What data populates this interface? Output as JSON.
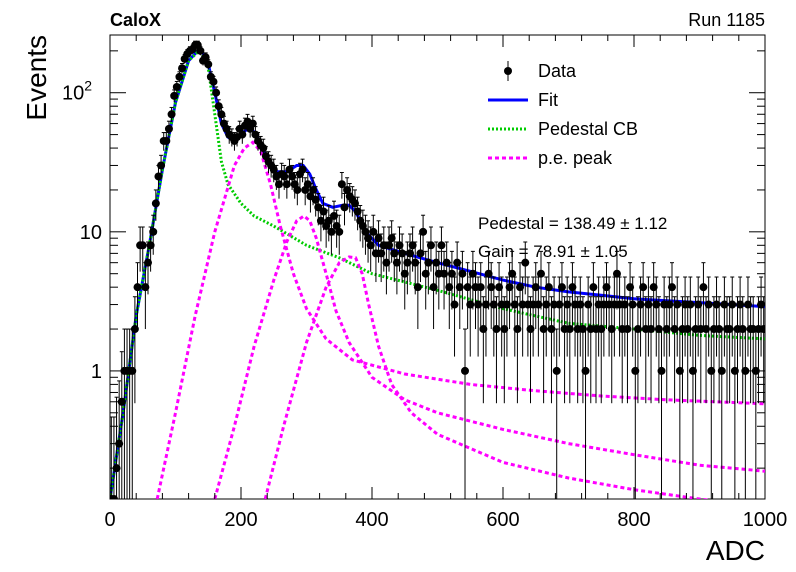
{
  "header": {
    "left_label": "CaloX",
    "right_label": "Run 1185"
  },
  "fit_results": {
    "pedestal_text": "Pedestal = 138.49 ± 1.12",
    "gain_text": "Gain = 78.91 ± 1.05"
  },
  "legend": [
    {
      "label": "Data",
      "marker": "point-with-errorbar",
      "color": "#000000"
    },
    {
      "label": "Fit",
      "marker": "solid-line",
      "color": "#0000ff"
    },
    {
      "label": "Pedestal CB",
      "marker": "dotted-line",
      "color": "#00cc00"
    },
    {
      "label": "p.e. peak",
      "marker": "dashed-line",
      "color": "#ff00ff"
    }
  ],
  "chart_data": {
    "type": "scatter",
    "xlabel": "ADC",
    "ylabel": "Events",
    "xlim": [
      0,
      1000
    ],
    "ylim": [
      0.12,
      260
    ],
    "yscale": "log",
    "x_ticks": [
      "0",
      "200",
      "400",
      "600",
      "800",
      "1000"
    ],
    "y_ticks": [
      {
        "value": 1,
        "label": "1"
      },
      {
        "value": 10,
        "label": "10"
      },
      {
        "value": 100,
        "label": "10²"
      }
    ],
    "legend_position": "top-right",
    "grid": false,
    "data_points": [
      [
        2,
        0.12
      ],
      [
        6,
        0.12
      ],
      [
        10,
        0.2
      ],
      [
        14,
        0.3
      ],
      [
        18,
        0.6
      ],
      [
        22,
        1
      ],
      [
        26,
        1
      ],
      [
        30,
        1
      ],
      [
        34,
        1
      ],
      [
        38,
        2
      ],
      [
        42,
        4
      ],
      [
        46,
        8
      ],
      [
        50,
        8
      ],
      [
        54,
        4
      ],
      [
        58,
        6
      ],
      [
        62,
        8
      ],
      [
        66,
        10
      ],
      [
        70,
        16
      ],
      [
        74,
        25
      ],
      [
        78,
        30
      ],
      [
        82,
        45
      ],
      [
        86,
        45
      ],
      [
        90,
        55
      ],
      [
        94,
        70
      ],
      [
        98,
        95
      ],
      [
        102,
        110
      ],
      [
        106,
        130
      ],
      [
        110,
        150
      ],
      [
        114,
        175
      ],
      [
        118,
        190
      ],
      [
        122,
        200
      ],
      [
        126,
        205
      ],
      [
        130,
        220
      ],
      [
        134,
        220
      ],
      [
        138,
        200
      ],
      [
        142,
        170
      ],
      [
        146,
        180
      ],
      [
        150,
        160
      ],
      [
        154,
        130
      ],
      [
        158,
        120
      ],
      [
        162,
        100
      ],
      [
        166,
        80
      ],
      [
        170,
        70
      ],
      [
        174,
        60
      ],
      [
        178,
        55
      ],
      [
        182,
        50
      ],
      [
        186,
        48
      ],
      [
        190,
        45
      ],
      [
        194,
        48
      ],
      [
        198,
        55
      ],
      [
        202,
        50
      ],
      [
        206,
        58
      ],
      [
        210,
        62
      ],
      [
        214,
        55
      ],
      [
        218,
        60
      ],
      [
        222,
        50
      ],
      [
        226,
        45
      ],
      [
        230,
        42
      ],
      [
        234,
        40
      ],
      [
        238,
        35
      ],
      [
        242,
        32
      ],
      [
        246,
        30
      ],
      [
        250,
        28
      ],
      [
        254,
        25
      ],
      [
        258,
        22
      ],
      [
        262,
        26
      ],
      [
        266,
        25
      ],
      [
        270,
        22
      ],
      [
        274,
        28
      ],
      [
        278,
        25
      ],
      [
        282,
        22
      ],
      [
        286,
        20
      ],
      [
        290,
        26
      ],
      [
        294,
        28
      ],
      [
        298,
        20
      ],
      [
        302,
        22
      ],
      [
        306,
        18
      ],
      [
        310,
        20
      ],
      [
        314,
        17
      ],
      [
        318,
        15
      ],
      [
        322,
        12
      ],
      [
        326,
        14
      ],
      [
        330,
        11
      ],
      [
        334,
        12
      ],
      [
        338,
        10
      ],
      [
        342,
        13
      ],
      [
        346,
        11
      ],
      [
        350,
        10
      ],
      [
        354,
        22
      ],
      [
        358,
        15
      ],
      [
        362,
        20
      ],
      [
        366,
        18
      ],
      [
        370,
        17
      ],
      [
        374,
        16
      ],
      [
        378,
        14
      ],
      [
        382,
        12
      ],
      [
        386,
        11
      ],
      [
        390,
        10
      ],
      [
        394,
        9
      ],
      [
        398,
        8
      ],
      [
        402,
        10
      ],
      [
        406,
        7
      ],
      [
        410,
        9
      ],
      [
        414,
        7
      ],
      [
        418,
        8
      ],
      [
        422,
        6
      ],
      [
        426,
        8
      ],
      [
        430,
        9
      ],
      [
        434,
        7
      ],
      [
        438,
        6
      ],
      [
        442,
        8
      ],
      [
        446,
        7
      ],
      [
        450,
        5
      ],
      [
        454,
        6
      ],
      [
        458,
        7
      ],
      [
        462,
        8
      ],
      [
        466,
        6
      ],
      [
        470,
        4
      ],
      [
        474,
        7
      ],
      [
        478,
        10
      ],
      [
        482,
        5
      ],
      [
        486,
        6
      ],
      [
        490,
        8
      ],
      [
        494,
        4
      ],
      [
        498,
        6
      ],
      [
        502,
        5
      ],
      [
        506,
        8
      ],
      [
        510,
        5
      ],
      [
        514,
        6
      ],
      [
        518,
        4
      ],
      [
        522,
        5
      ],
      [
        526,
        3
      ],
      [
        530,
        6
      ],
      [
        534,
        4
      ],
      [
        538,
        5
      ],
      [
        542,
        1
      ],
      [
        546,
        4
      ],
      [
        550,
        3
      ],
      [
        554,
        5
      ],
      [
        558,
        4
      ],
      [
        562,
        3
      ],
      [
        566,
        4
      ],
      [
        570,
        2
      ],
      [
        574,
        3
      ],
      [
        578,
        5
      ],
      [
        582,
        4
      ],
      [
        586,
        3
      ],
      [
        590,
        2
      ],
      [
        594,
        4
      ],
      [
        598,
        3
      ],
      [
        602,
        2
      ],
      [
        606,
        3
      ],
      [
        610,
        4
      ],
      [
        614,
        5
      ],
      [
        618,
        3
      ],
      [
        622,
        2
      ],
      [
        626,
        4
      ],
      [
        630,
        3
      ],
      [
        634,
        6
      ],
      [
        638,
        3
      ],
      [
        642,
        2
      ],
      [
        646,
        3
      ],
      [
        650,
        4
      ],
      [
        654,
        3
      ],
      [
        658,
        5
      ],
      [
        662,
        2
      ],
      [
        666,
        3
      ],
      [
        670,
        4
      ],
      [
        674,
        2
      ],
      [
        678,
        3
      ],
      [
        682,
        1
      ],
      [
        686,
        3
      ],
      [
        690,
        4
      ],
      [
        694,
        2
      ],
      [
        698,
        3
      ],
      [
        702,
        2
      ],
      [
        706,
        4
      ],
      [
        710,
        3
      ],
      [
        714,
        2
      ],
      [
        718,
        3
      ],
      [
        722,
        2
      ],
      [
        726,
        1
      ],
      [
        730,
        3
      ],
      [
        734,
        2
      ],
      [
        738,
        4
      ],
      [
        742,
        2
      ],
      [
        746,
        3
      ],
      [
        750,
        2
      ],
      [
        754,
        3
      ],
      [
        758,
        4
      ],
      [
        762,
        3
      ],
      [
        766,
        2
      ],
      [
        770,
        3
      ],
      [
        774,
        5
      ],
      [
        778,
        3
      ],
      [
        782,
        2
      ],
      [
        786,
        3
      ],
      [
        790,
        2
      ],
      [
        794,
        4
      ],
      [
        798,
        3
      ],
      [
        802,
        1
      ],
      [
        806,
        2
      ],
      [
        810,
        3
      ],
      [
        814,
        4
      ],
      [
        818,
        2
      ],
      [
        822,
        3
      ],
      [
        826,
        2
      ],
      [
        830,
        4
      ],
      [
        834,
        3
      ],
      [
        838,
        2
      ],
      [
        842,
        1
      ],
      [
        846,
        3
      ],
      [
        850,
        2
      ],
      [
        854,
        3
      ],
      [
        858,
        4
      ],
      [
        862,
        2
      ],
      [
        866,
        3
      ],
      [
        870,
        1
      ],
      [
        874,
        2
      ],
      [
        878,
        3
      ],
      [
        882,
        2
      ],
      [
        886,
        3
      ],
      [
        890,
        1
      ],
      [
        894,
        2
      ],
      [
        898,
        3
      ],
      [
        902,
        2
      ],
      [
        906,
        4
      ],
      [
        910,
        2
      ],
      [
        914,
        3
      ],
      [
        918,
        1
      ],
      [
        922,
        2
      ],
      [
        926,
        3
      ],
      [
        930,
        2
      ],
      [
        934,
        1
      ],
      [
        938,
        3
      ],
      [
        942,
        2
      ],
      [
        946,
        2
      ],
      [
        950,
        3
      ],
      [
        954,
        1
      ],
      [
        958,
        2
      ],
      [
        962,
        3
      ],
      [
        966,
        2
      ],
      [
        970,
        1
      ],
      [
        974,
        3
      ],
      [
        978,
        2
      ],
      [
        982,
        2
      ],
      [
        986,
        1
      ],
      [
        990,
        2
      ],
      [
        994,
        3
      ],
      [
        998,
        2
      ]
    ],
    "curves": [
      {
        "name": "Fit",
        "color": "#0000ff",
        "style": "solid",
        "points": [
          [
            0,
            0.12
          ],
          [
            20,
            0.5
          ],
          [
            40,
            2.5
          ],
          [
            60,
            8
          ],
          [
            80,
            28
          ],
          [
            100,
            85
          ],
          [
            120,
            170
          ],
          [
            138,
            210
          ],
          [
            150,
            160
          ],
          [
            160,
            100
          ],
          [
            170,
            60
          ],
          [
            180,
            48
          ],
          [
            190,
            45
          ],
          [
            200,
            50
          ],
          [
            210,
            55
          ],
          [
            215,
            56
          ],
          [
            225,
            48
          ],
          [
            240,
            33
          ],
          [
            255,
            27
          ],
          [
            270,
            27
          ],
          [
            285,
            30
          ],
          [
            295,
            30
          ],
          [
            305,
            26
          ],
          [
            315,
            20
          ],
          [
            325,
            16
          ],
          [
            340,
            15
          ],
          [
            355,
            15.5
          ],
          [
            365,
            15.5
          ],
          [
            375,
            14
          ],
          [
            390,
            10
          ],
          [
            410,
            8
          ],
          [
            450,
            7
          ],
          [
            500,
            6
          ],
          [
            550,
            5.2
          ],
          [
            600,
            4.5
          ],
          [
            650,
            4
          ],
          [
            700,
            3.7
          ],
          [
            750,
            3.5
          ],
          [
            800,
            3.3
          ],
          [
            850,
            3.2
          ],
          [
            900,
            3.1
          ],
          [
            950,
            3.0
          ],
          [
            1000,
            2.9
          ]
        ]
      },
      {
        "name": "Pedestal CB",
        "color": "#00cc00",
        "style": "dotted",
        "points": [
          [
            0,
            0.12
          ],
          [
            20,
            0.5
          ],
          [
            40,
            2.5
          ],
          [
            60,
            8
          ],
          [
            80,
            28
          ],
          [
            100,
            85
          ],
          [
            120,
            170
          ],
          [
            138,
            205
          ],
          [
            150,
            150
          ],
          [
            160,
            70
          ],
          [
            170,
            32
          ],
          [
            180,
            22
          ],
          [
            200,
            16
          ],
          [
            220,
            13
          ],
          [
            250,
            11
          ],
          [
            300,
            8
          ],
          [
            350,
            6.5
          ],
          [
            400,
            5
          ],
          [
            500,
            3.8
          ],
          [
            600,
            2.8
          ],
          [
            700,
            2.2
          ],
          [
            800,
            2
          ],
          [
            900,
            1.8
          ],
          [
            1000,
            1.7
          ]
        ]
      },
      {
        "name": "p.e. peak 1",
        "color": "#ff00ff",
        "style": "dashed",
        "points": [
          [
            72,
            0.12
          ],
          [
            100,
            0.5
          ],
          [
            130,
            2.5
          ],
          [
            160,
            10
          ],
          [
            190,
            30
          ],
          [
            205,
            40
          ],
          [
            218,
            44
          ],
          [
            230,
            38
          ],
          [
            245,
            22
          ],
          [
            260,
            11
          ],
          [
            280,
            5
          ],
          [
            300,
            2.8
          ],
          [
            330,
            1.7
          ],
          [
            370,
            1.2
          ],
          [
            450,
            0.95
          ],
          [
            550,
            0.8
          ],
          [
            650,
            0.72
          ],
          [
            750,
            0.66
          ],
          [
            850,
            0.62
          ],
          [
            1000,
            0.58
          ]
        ]
      },
      {
        "name": "p.e. peak 2",
        "color": "#ff00ff",
        "style": "dashed",
        "points": [
          [
            160,
            0.12
          ],
          [
            190,
            0.4
          ],
          [
            220,
            1.5
          ],
          [
            250,
            4.5
          ],
          [
            270,
            8.5
          ],
          [
            285,
            12
          ],
          [
            296,
            13
          ],
          [
            305,
            12
          ],
          [
            315,
            9
          ],
          [
            330,
            5
          ],
          [
            345,
            2.7
          ],
          [
            365,
            1.6
          ],
          [
            400,
            0.9
          ],
          [
            450,
            0.62
          ],
          [
            500,
            0.5
          ],
          [
            600,
            0.38
          ],
          [
            700,
            0.3
          ],
          [
            800,
            0.25
          ],
          [
            900,
            0.21
          ],
          [
            1000,
            0.19
          ]
        ]
      },
      {
        "name": "p.e. peak 3",
        "color": "#ff00ff",
        "style": "dashed",
        "points": [
          [
            237,
            0.12
          ],
          [
            265,
            0.4
          ],
          [
            300,
            1.6
          ],
          [
            330,
            4
          ],
          [
            350,
            6
          ],
          [
            365,
            6.6
          ],
          [
            375,
            6.5
          ],
          [
            385,
            5
          ],
          [
            395,
            3
          ],
          [
            410,
            1.5
          ],
          [
            430,
            0.8
          ],
          [
            460,
            0.5
          ],
          [
            500,
            0.35
          ],
          [
            600,
            0.22
          ],
          [
            700,
            0.17
          ],
          [
            800,
            0.14
          ],
          [
            900,
            0.12
          ],
          [
            1000,
            0.105
          ]
        ]
      }
    ]
  }
}
